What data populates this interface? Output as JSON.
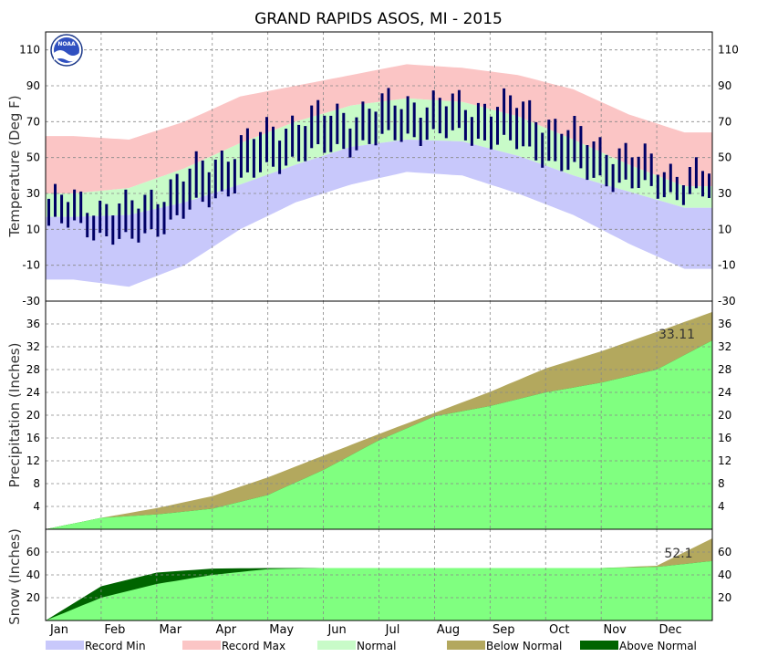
{
  "chart_data": [
    {
      "type": "area",
      "title": "GRAND RAPIDS ASOS, MI - 2015",
      "ylabel": "Temperature (Deg F)",
      "ylim": [
        -30,
        120
      ],
      "yticks": [
        -30,
        -10,
        10,
        30,
        50,
        70,
        90,
        110
      ],
      "grid": true,
      "months": [
        "Jan",
        "Feb",
        "Mar",
        "Apr",
        "May",
        "Jun",
        "Jul",
        "Aug",
        "Sep",
        "Oct",
        "Nov",
        "Dec"
      ],
      "series": [
        {
          "name": "Record Max",
          "color": "#fbc5c5",
          "monthly_values": [
            62,
            60,
            70,
            84,
            90,
            96,
            102,
            100,
            96,
            88,
            74,
            64
          ]
        },
        {
          "name": "Normal",
          "color": "#c8fbc8",
          "monthly_high": [
            30,
            33,
            44,
            58,
            70,
            79,
            83,
            81,
            73,
            60,
            46,
            34
          ],
          "monthly_low": [
            17,
            18,
            25,
            35,
            46,
            56,
            60,
            59,
            51,
            40,
            31,
            22
          ]
        },
        {
          "name": "Record Min",
          "color": "#c8c8fb",
          "monthly_values": [
            -18,
            -22,
            -10,
            10,
            25,
            35,
            42,
            40,
            30,
            18,
            2,
            -12
          ]
        },
        {
          "name": "Observed",
          "color": "#000066",
          "monthly_high": [
            27,
            22,
            40,
            58,
            72,
            76,
            82,
            80,
            80,
            64,
            52,
            42
          ],
          "monthly_low": [
            12,
            2,
            18,
            36,
            50,
            56,
            62,
            62,
            56,
            42,
            34,
            28
          ]
        }
      ]
    },
    {
      "type": "area",
      "ylabel": "Precipitation (Inches)",
      "ylim": [
        0,
        40
      ],
      "yticks": [
        4,
        8,
        12,
        16,
        20,
        24,
        28,
        32,
        36
      ],
      "grid": true,
      "annotation": "33.11",
      "month_end_normal": [
        2.0,
        3.7,
        5.8,
        9.1,
        12.9,
        16.7,
        20.4,
        24.1,
        28.2,
        31.2,
        34.6,
        38.1
      ],
      "month_end_observed": [
        2.0,
        2.6,
        3.6,
        6.0,
        10.4,
        15.6,
        19.8,
        21.6,
        24.0,
        25.7,
        28.0,
        33.11
      ],
      "series": [
        {
          "name": "Below Normal",
          "color": "#b3a85e"
        },
        {
          "name": "Above Normal",
          "color": "#006400"
        },
        {
          "name": "Observed",
          "color": "#80ff80"
        }
      ]
    },
    {
      "type": "area",
      "ylabel": "Snow (Inches)",
      "ylim": [
        0,
        80
      ],
      "yticks": [
        20,
        40,
        60
      ],
      "grid": true,
      "annotation": "52.1",
      "month_end_normal": [
        20.0,
        32.0,
        40.0,
        45.0,
        46.0,
        46.0,
        46.0,
        46.0,
        46.0,
        46.0,
        48.0,
        72.0
      ],
      "month_end_observed": [
        30.0,
        42.0,
        45.5,
        46.0,
        46.0,
        46.0,
        46.0,
        46.0,
        46.0,
        46.0,
        47.0,
        52.1
      ],
      "series": [
        {
          "name": "Below Normal",
          "color": "#b3a85e"
        },
        {
          "name": "Above Normal",
          "color": "#006400"
        },
        {
          "name": "Observed",
          "color": "#80ff80"
        }
      ]
    }
  ],
  "legend": [
    {
      "label": "Record Min",
      "color": "#c8c8fb"
    },
    {
      "label": "Record Max",
      "color": "#fbc5c5"
    },
    {
      "label": "Normal",
      "color": "#c8fbc8"
    },
    {
      "label": "Below Normal",
      "color": "#b3a85e"
    },
    {
      "label": "Above Normal",
      "color": "#006400"
    }
  ],
  "logo": {
    "icon": "noaa-logo",
    "text": "NOAA"
  }
}
